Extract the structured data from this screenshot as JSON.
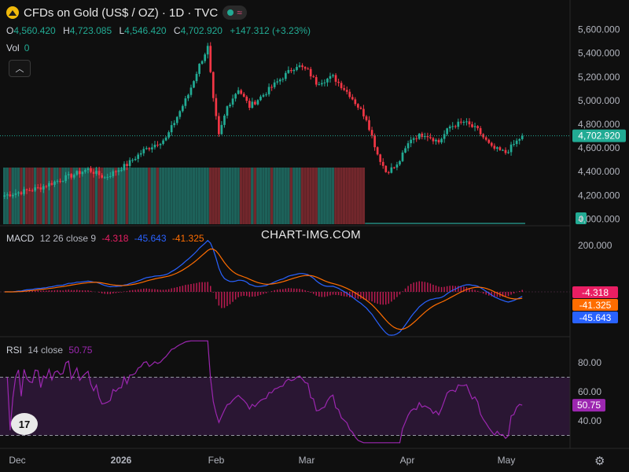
{
  "header": {
    "title": "CFDs on Gold (US$ / OZ) · 1D · TVC",
    "ohlc": {
      "o_label": "O",
      "o_value": "4,560.420",
      "h_label": "H",
      "h_value": "4,723.085",
      "l_label": "L",
      "l_value": "4,546.420",
      "c_label": "C",
      "c_value": "4,702.920",
      "change": "+147.312 (+3.23%)"
    },
    "vol_label": "Vol",
    "vol_value": "0"
  },
  "watermark": "CHART-IMG.COM",
  "logo_text": "17",
  "colors": {
    "up": "#22ab94",
    "down": "#f23645",
    "macd_line": "#2962ff",
    "signal_line": "#ff6d00",
    "hist": "#e91e63",
    "rsi_line": "#9c27b0",
    "rsi_band": "#2a1633",
    "background": "#0f0f0f",
    "price_badge": "#22ab94"
  },
  "macd": {
    "label": "MACD",
    "params": "12 26 close 9",
    "hist_value": "-4.318",
    "macd_value": "-45.643",
    "signal_value": "-41.325",
    "badges": [
      "-4.318",
      "-41.325",
      "-45.643"
    ]
  },
  "rsi": {
    "label": "RSI",
    "params": "14 close",
    "value": "50.75",
    "badge": "50.75"
  },
  "chart_data": [
    {
      "type": "candlestick",
      "title": "CFDs on Gold (US$ / OZ)",
      "interval": "1D",
      "source": "TVC",
      "y_axis_ticks": [
        "5,600.000",
        "5,400.000",
        "5,200.000",
        "5,000.000",
        "4,800.000",
        "4,600.000",
        "4,400.000",
        "4,200.000",
        "4,000.000"
      ],
      "ylim": [
        3970,
        5650
      ],
      "x_axis_ticks": [
        "Dec",
        "2026",
        "Feb",
        "Mar",
        "Apr",
        "May"
      ],
      "last_price": "4,702.920",
      "volume_badge": "0",
      "close_path": [
        {
          "t": 0,
          "close": 4200
        },
        {
          "t": 12,
          "close": 4260
        },
        {
          "t": 22,
          "close": 4350
        },
        {
          "t": 30,
          "close": 4420
        },
        {
          "t": 36,
          "close": 4350
        },
        {
          "t": 44,
          "close": 4460
        },
        {
          "t": 50,
          "close": 4580
        },
        {
          "t": 58,
          "close": 4680
        },
        {
          "t": 66,
          "close": 5050
        },
        {
          "t": 70,
          "close": 5300
        },
        {
          "t": 73,
          "close": 5450
        },
        {
          "t": 75,
          "close": 5000
        },
        {
          "t": 77,
          "close": 4700
        },
        {
          "t": 80,
          "close": 4950
        },
        {
          "t": 84,
          "close": 5100
        },
        {
          "t": 88,
          "close": 4950
        },
        {
          "t": 93,
          "close": 5050
        },
        {
          "t": 99,
          "close": 5180
        },
        {
          "t": 105,
          "close": 5300
        },
        {
          "t": 109,
          "close": 5250
        },
        {
          "t": 112,
          "close": 5150
        },
        {
          "t": 118,
          "close": 5200
        },
        {
          "t": 124,
          "close": 5050
        },
        {
          "t": 130,
          "close": 4850
        },
        {
          "t": 134,
          "close": 4550
        },
        {
          "t": 137,
          "close": 4400
        },
        {
          "t": 141,
          "close": 4450
        },
        {
          "t": 146,
          "close": 4680
        },
        {
          "t": 151,
          "close": 4720
        },
        {
          "t": 156,
          "close": 4650
        },
        {
          "t": 160,
          "close": 4780
        },
        {
          "t": 165,
          "close": 4820
        },
        {
          "t": 170,
          "close": 4750
        },
        {
          "t": 175,
          "close": 4600
        },
        {
          "t": 180,
          "close": 4560
        },
        {
          "t": 186,
          "close": 4703
        }
      ]
    },
    {
      "type": "line",
      "title": "MACD 12 26 close 9",
      "y_axis_ticks": [
        "200.000"
      ],
      "series": [
        {
          "name": "MACD",
          "value": -45.643
        },
        {
          "name": "Signal",
          "value": -41.325
        },
        {
          "name": "Histogram",
          "value": -4.318
        }
      ]
    },
    {
      "type": "line",
      "title": "RSI 14 close",
      "y_axis_ticks": [
        "80.00",
        "60.00",
        "40.00"
      ],
      "levels": [
        70,
        30
      ],
      "ylim": [
        25,
        95
      ],
      "series": [
        {
          "name": "RSI",
          "last": 50.75
        }
      ]
    }
  ]
}
